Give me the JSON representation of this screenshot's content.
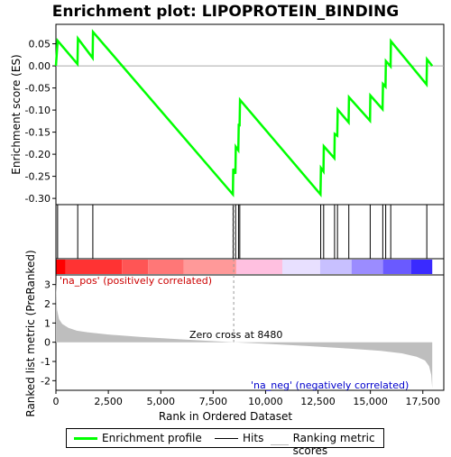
{
  "chart_data": {
    "type": "line",
    "title": "Enrichment plot: LIPOPROTEIN_BINDING",
    "es_panel": {
      "ylabel": "Enrichment score (ES)",
      "ylim": [
        -0.31,
        0.09
      ],
      "yticks": [
        0.05,
        0.0,
        -0.05,
        -0.1,
        -0.15,
        -0.2,
        -0.25,
        -0.3
      ],
      "ytick_labels": [
        "0.05",
        "0.00",
        "-0.05",
        "-0.10",
        "-0.15",
        "-0.20",
        "-0.25",
        "-0.30"
      ],
      "series": [
        {
          "name": "Enrichment profile",
          "color": "#00ff00",
          "x": [
            0,
            80,
            1030,
            1050,
            1750,
            1770,
            8440,
            8460,
            8560,
            8580,
            8700,
            8720,
            8760,
            8780,
            12620,
            12640,
            12760,
            12780,
            13280,
            13300,
            13420,
            13440,
            13960,
            13980,
            14980,
            15000,
            15580,
            15600,
            15720,
            15740,
            15960,
            15980,
            17680,
            17700,
            17950
          ],
          "values": [
            0.0,
            0.057,
            0.004,
            0.062,
            0.018,
            0.077,
            -0.291,
            -0.233,
            -0.244,
            -0.183,
            -0.191,
            -0.131,
            -0.137,
            -0.077,
            -0.291,
            -0.231,
            -0.239,
            -0.182,
            -0.209,
            -0.154,
            -0.158,
            -0.099,
            -0.128,
            -0.071,
            -0.124,
            -0.067,
            -0.098,
            -0.041,
            -0.047,
            0.011,
            -0.001,
            0.056,
            -0.042,
            0.015,
            0.0
          ]
        }
      ]
    },
    "hits": {
      "name": "Hits",
      "positions": [
        80,
        1040,
        1760,
        8450,
        8570,
        8710,
        8770,
        12630,
        12770,
        13290,
        13430,
        13970,
        14990,
        15590,
        15730,
        15970,
        17690
      ]
    },
    "ranking_panel": {
      "ylabel": "Ranked list metric (PreRanked)",
      "xlabel": "Rank in Ordered Dataset",
      "xlim": [
        0,
        18500
      ],
      "ylim": [
        -2.5,
        3.5
      ],
      "yticks": [
        3,
        2,
        1,
        0,
        -1,
        -2
      ],
      "ytick_labels": [
        "3",
        "2",
        "1",
        "0",
        "-1",
        "-2"
      ],
      "xticks": [
        0,
        2500,
        5000,
        7500,
        10000,
        12500,
        15000,
        17500
      ],
      "xtick_labels": [
        "0",
        "2,500",
        "5,000",
        "7,500",
        "10,000",
        "12,500",
        "15,000",
        "17,500"
      ],
      "series": {
        "name": "Ranking metric scores",
        "color": "#bebebe",
        "x": [
          0,
          50,
          150,
          300,
          600,
          1000,
          1500,
          2500,
          4000,
          6000,
          8480,
          10000,
          12000,
          14000,
          15500,
          16500,
          17200,
          17600,
          17800,
          17900,
          17950
        ],
        "values": [
          3.2,
          1.7,
          1.2,
          0.95,
          0.75,
          0.6,
          0.52,
          0.4,
          0.28,
          0.15,
          0.0,
          -0.08,
          -0.2,
          -0.33,
          -0.45,
          -0.58,
          -0.75,
          -0.95,
          -1.25,
          -1.7,
          -2.4
        ]
      },
      "zero_cross_label": "Zero cross at 8480",
      "zero_cross": 8480,
      "pos_label": "'na_pos' (positively correlated)",
      "neg_label": "'na_neg' (negatively correlated)"
    },
    "heatbar_colors": [
      "#ff0000",
      "#ff3333",
      "#ff5555",
      "#ff7777",
      "#ff9999",
      "#ffc0e0",
      "#e8e0ff",
      "#c8c0ff",
      "#9b8cff",
      "#6a5aff",
      "#3a2aff",
      "#1800cc"
    ],
    "heatbar_breaks": [
      0,
      450,
      3150,
      4400,
      6100,
      8600,
      10800,
      12600,
      14100,
      15600,
      16950,
      17950
    ],
    "n_total": 17950
  },
  "legend": {
    "items": [
      {
        "label": "Enrichment profile",
        "color": "#00ff00"
      },
      {
        "label": "Hits",
        "color": "#000000"
      },
      {
        "label": "Ranking metric scores",
        "color": "#bebebe"
      }
    ]
  }
}
